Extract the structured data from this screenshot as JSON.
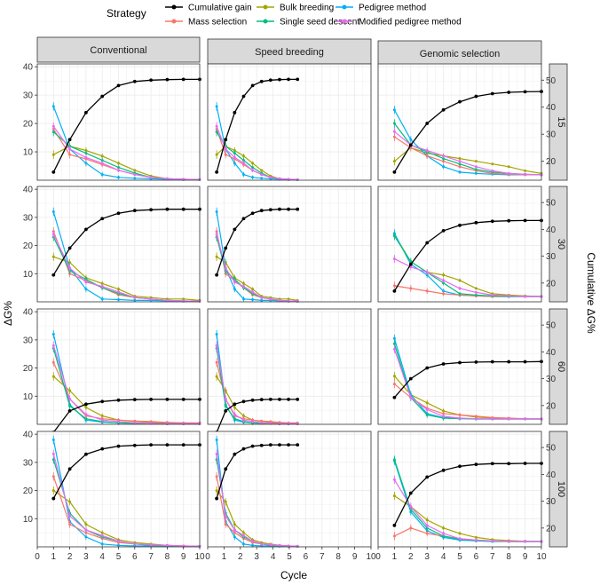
{
  "chart_data": {
    "type": "line",
    "legend": {
      "title": "Strategy",
      "placement": "top",
      "entries": [
        {
          "name": "Cumulative gain",
          "color": "#000000"
        },
        {
          "name": "Bulk breeding",
          "color": "#a3a500"
        },
        {
          "name": "Pedigree method",
          "color": "#00b0f6"
        },
        {
          "name": "Mass selection",
          "color": "#f8766d"
        },
        {
          "name": "Single seed descent",
          "color": "#00bf7d"
        },
        {
          "name": "Modified pedigree method",
          "color": "#e76bf3"
        }
      ]
    },
    "xlabel": "Cycle",
    "ylabel_left": "ΔG%",
    "ylabel_right": "Cumulative ΔG%",
    "x_ticks": [
      "0",
      "1",
      "2",
      "3",
      "4",
      "5",
      "6",
      "7",
      "8",
      "9",
      "10"
    ],
    "xlim": [
      0,
      10
    ],
    "ylim_left": [
      0,
      41
    ],
    "yticks_left": [
      "10",
      "20",
      "30",
      "40"
    ],
    "ylim_right": [
      13,
      56
    ],
    "yticks_right": [
      "20",
      "30",
      "40",
      "50"
    ],
    "columns": [
      "Conventional",
      "Speed breeding",
      "Genomic selection"
    ],
    "rows": [
      "15",
      "30",
      "60",
      "100"
    ],
    "speed_x_scale": 0.55,
    "panels": [
      {
        "cumulative": [
          16,
          28,
          38,
          44,
          48,
          49.5,
          50,
          50.2,
          50.3,
          50.3
        ],
        "series": {
          "Bulk breeding": [
            9,
            12,
            10.5,
            8.5,
            6,
            3.5,
            1.5,
            0.5,
            0.3,
            0.2
          ],
          "Pedigree method": [
            26,
            11,
            6,
            2,
            1,
            0.7,
            0.5,
            0.3,
            0.2,
            0.2
          ],
          "Mass selection": [
            18,
            9,
            7.5,
            5.5,
            3.5,
            2,
            1,
            0.5,
            0.3,
            0.2
          ],
          "Single seed descent": [
            17,
            12,
            9.5,
            7,
            4.5,
            2.5,
            1,
            0.5,
            0.3,
            0.2
          ],
          "Modified pedigree method": [
            19,
            11,
            8,
            6,
            3.5,
            2,
            1,
            0.5,
            0.3,
            0.2
          ]
        }
      },
      {
        "cumulative": [
          16,
          28,
          38,
          44,
          48,
          49.5,
          50,
          50.2,
          50.3,
          50.3
        ],
        "series": {
          "Bulk breeding": [
            9,
            12,
            10.5,
            8.5,
            6,
            3.5,
            1.5,
            0.5,
            0.3,
            0.2
          ],
          "Pedigree method": [
            26,
            11,
            6,
            2,
            1,
            0.7,
            0.5,
            0.3,
            0.2,
            0.2
          ],
          "Mass selection": [
            18,
            9,
            7.5,
            5.5,
            3.5,
            2,
            1,
            0.5,
            0.3,
            0.2
          ],
          "Single seed descent": [
            17,
            12,
            9.5,
            7,
            4.5,
            2.5,
            1,
            0.5,
            0.3,
            0.2
          ],
          "Modified pedigree method": [
            19,
            11,
            8,
            6,
            3.5,
            2,
            1,
            0.5,
            0.3,
            0.2
          ]
        }
      },
      {
        "cumulative": [
          16,
          26,
          34,
          39,
          42,
          44,
          45,
          45.5,
          45.7,
          45.8
        ],
        "series": {
          "Bulk breeding": [
            20,
            25,
            23,
            22,
            21,
            20,
            19,
            18,
            16.5,
            15.5
          ],
          "Pedigree method": [
            39,
            28,
            22,
            18,
            16,
            15.5,
            15.2,
            15,
            15,
            15
          ],
          "Mass selection": [
            29,
            25,
            22,
            20,
            18,
            16.5,
            15.5,
            15.2,
            15,
            15
          ],
          "Single seed descent": [
            34,
            26,
            23.5,
            21,
            19,
            17,
            16,
            15.5,
            15.2,
            15
          ],
          "Modified pedigree method": [
            31,
            26,
            24,
            22,
            20,
            18,
            16.5,
            15.5,
            15.2,
            15
          ]
        }
      },
      {
        "cumulative": [
          23,
          33,
          40,
          44,
          46,
          47,
          47.3,
          47.5,
          47.5,
          47.5
        ],
        "series": {
          "Bulk breeding": [
            16,
            14,
            8.5,
            6.5,
            4.5,
            2,
            1.5,
            1,
            1,
            0.5
          ],
          "Pedigree method": [
            32,
            12,
            4.5,
            1,
            0.8,
            0.5,
            0.5,
            0.3,
            0.2,
            0.2
          ],
          "Mass selection": [
            25,
            10,
            7.5,
            5,
            2.5,
            1.5,
            1,
            0.5,
            0.3,
            0.2
          ],
          "Single seed descent": [
            23,
            11,
            8,
            5,
            3,
            1.5,
            1,
            0.5,
            0.3,
            0.2
          ],
          "Modified pedigree method": [
            24,
            12,
            7,
            5.5,
            3.5,
            1.5,
            1,
            0.5,
            0.3,
            0.2
          ]
        }
      },
      {
        "cumulative": [
          23,
          33,
          40,
          44,
          46,
          47,
          47.3,
          47.5,
          47.5,
          47.5
        ],
        "series": {
          "Bulk breeding": [
            16,
            14,
            8.5,
            6.5,
            4.5,
            2,
            1.5,
            1,
            1,
            0.5
          ],
          "Pedigree method": [
            32,
            12,
            4.5,
            1,
            0.8,
            0.5,
            0.5,
            0.3,
            0.2,
            0.2
          ],
          "Mass selection": [
            25,
            10,
            7.5,
            5,
            2.5,
            1.5,
            1,
            0.5,
            0.3,
            0.2
          ],
          "Single seed descent": [
            23,
            11,
            8,
            5,
            3,
            1.5,
            1,
            0.5,
            0.3,
            0.2
          ],
          "Modified pedigree method": [
            24,
            12,
            7,
            5.5,
            3.5,
            1.5,
            1,
            0.5,
            0.3,
            0.2
          ]
        }
      },
      {
        "cumulative": [
          17,
          27,
          35,
          39.5,
          41.5,
          42.5,
          43,
          43.2,
          43.3,
          43.3
        ],
        "series": {
          "Bulk breeding": [
            38,
            28,
            24,
            23,
            21,
            18,
            16,
            15.5,
            15.2,
            15
          ],
          "Pedigree method": [
            38.5,
            27,
            23,
            17,
            15.5,
            15.2,
            15,
            15,
            15,
            15
          ],
          "Mass selection": [
            19,
            18,
            17,
            16,
            15.5,
            15.2,
            15,
            15,
            15,
            15
          ],
          "Single seed descent": [
            37.5,
            28,
            24,
            20,
            16,
            15.5,
            15.2,
            15,
            15,
            15
          ],
          "Modified pedigree method": [
            29,
            26,
            24,
            21,
            18,
            16.5,
            15.5,
            15.2,
            15,
            15
          ]
        }
      },
      {
        "cumulative": [
          10,
          18,
          20.5,
          21.5,
          22,
          22.2,
          22.3,
          22.3,
          22.3,
          22.3
        ],
        "series": {
          "Bulk breeding": [
            17,
            12,
            6,
            3,
            1.5,
            1,
            0.7,
            0.5,
            0.3,
            0.2
          ],
          "Pedigree method": [
            32,
            7,
            1.5,
            0.8,
            0.5,
            0.3,
            0.3,
            0.2,
            0.2,
            0.2
          ],
          "Mass selection": [
            22,
            9,
            3,
            2,
            1.5,
            1.2,
            1,
            0.7,
            0.5,
            0.5
          ],
          "Single seed descent": [
            27,
            6.5,
            2,
            1,
            0.5,
            0.3,
            0.3,
            0.2,
            0.2,
            0.2
          ],
          "Modified pedigree method": [
            28,
            9,
            3.5,
            1.5,
            1,
            0.5,
            0.3,
            0.2,
            0.2,
            0.2
          ]
        }
      },
      {
        "cumulative": [
          10,
          18,
          20.5,
          21.5,
          22,
          22.2,
          22.3,
          22.3,
          22.3,
          22.3
        ],
        "series": {
          "Bulk breeding": [
            17,
            12,
            6,
            3,
            1.5,
            1,
            0.7,
            0.5,
            0.3,
            0.2
          ],
          "Pedigree method": [
            32,
            7,
            1.5,
            0.8,
            0.5,
            0.3,
            0.3,
            0.2,
            0.2,
            0.2
          ],
          "Mass selection": [
            22,
            9,
            3,
            2,
            1.5,
            1.2,
            1,
            0.7,
            0.5,
            0.5
          ],
          "Single seed descent": [
            27,
            6.5,
            2,
            1,
            0.5,
            0.3,
            0.3,
            0.2,
            0.2,
            0.2
          ],
          "Modified pedigree method": [
            28,
            9,
            3.5,
            1.5,
            1,
            0.5,
            0.3,
            0.2,
            0.2,
            0.2
          ]
        }
      },
      {
        "cumulative": [
          23,
          30,
          34,
          35.5,
          36,
          36.2,
          36.3,
          36.3,
          36.3,
          36.4
        ],
        "series": {
          "Bulk breeding": [
            31,
            24,
            21,
            18,
            16.5,
            15.7,
            15.3,
            15.1,
            15,
            15
          ],
          "Pedigree method": [
            45,
            24,
            17,
            15.5,
            15.2,
            15,
            15,
            15,
            15,
            15
          ],
          "Mass selection": [
            28,
            23,
            19,
            17,
            16.5,
            16,
            15.5,
            15.3,
            15.1,
            15
          ],
          "Single seed descent": [
            43,
            23,
            16.5,
            15.3,
            15.1,
            15,
            15,
            15,
            15,
            15
          ],
          "Modified pedigree method": [
            41,
            23,
            18.5,
            16,
            15.3,
            15.1,
            15,
            15,
            15,
            15
          ]
        }
      },
      {
        "cumulative": [
          31,
          42,
          47.5,
          49.5,
          50.5,
          50.8,
          51,
          51,
          51,
          51
        ],
        "series": {
          "Bulk breeding": [
            20,
            16,
            8,
            5,
            2.5,
            1.5,
            1,
            0.5,
            0.3,
            0.2
          ],
          "Pedigree method": [
            38,
            9,
            3.5,
            1,
            0.5,
            0.3,
            0.3,
            0.2,
            0.2,
            0.2
          ],
          "Mass selection": [
            25,
            8,
            5,
            3,
            1.5,
            1,
            0.8,
            0.5,
            0.3,
            0.2
          ],
          "Single seed descent": [
            31,
            12,
            6,
            3.5,
            2,
            1,
            0.5,
            0.3,
            0.2,
            0.2
          ],
          "Modified pedigree method": [
            33,
            11,
            6,
            4,
            2,
            1,
            0.7,
            0.5,
            0.3,
            0.2
          ]
        }
      },
      {
        "cumulative": [
          31,
          42,
          47.5,
          49.5,
          50.5,
          50.8,
          51,
          51,
          51,
          51
        ],
        "series": {
          "Bulk breeding": [
            20,
            16,
            8,
            5,
            2.5,
            1.5,
            1,
            0.5,
            0.3,
            0.2
          ],
          "Pedigree method": [
            38,
            9,
            3.5,
            1,
            0.5,
            0.3,
            0.3,
            0.2,
            0.2,
            0.2
          ],
          "Mass selection": [
            25,
            8,
            5,
            3,
            1.5,
            1,
            0.8,
            0.5,
            0.3,
            0.2
          ],
          "Single seed descent": [
            31,
            12,
            6,
            3.5,
            2,
            1,
            0.5,
            0.3,
            0.2,
            0.2
          ],
          "Modified pedigree method": [
            33,
            11,
            6,
            4,
            2,
            1,
            0.7,
            0.5,
            0.3,
            0.2
          ]
        }
      },
      {
        "cumulative": [
          21,
          33,
          39,
          41.5,
          43,
          43.7,
          44,
          44,
          44.1,
          44.1
        ],
        "series": {
          "Bulk breeding": [
            32,
            28,
            23,
            20,
            18,
            16.5,
            15.7,
            15.3,
            15.1,
            15
          ],
          "Pedigree method": [
            45,
            26,
            19,
            16.5,
            15.5,
            15.2,
            15,
            15,
            15,
            15
          ],
          "Mass selection": [
            17,
            20,
            18,
            17,
            16,
            15.5,
            15.2,
            15,
            15,
            15
          ],
          "Single seed descent": [
            45.5,
            27,
            20,
            17,
            15.8,
            15.3,
            15.1,
            15,
            15,
            15
          ],
          "Modified pedigree method": [
            38,
            28,
            21,
            18,
            16,
            15.5,
            15.2,
            15,
            15,
            15
          ]
        }
      }
    ]
  }
}
